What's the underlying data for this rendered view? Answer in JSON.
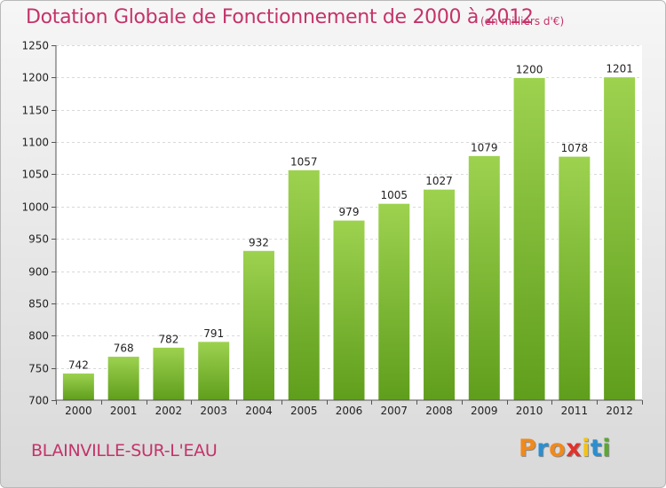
{
  "chart_data": {
    "type": "bar",
    "title": "Dotation Globale de Fonctionnement de 2000 à 2012",
    "subtitle": "(en milliers d'€)",
    "categories": [
      "2000",
      "2001",
      "2002",
      "2003",
      "2004",
      "2005",
      "2006",
      "2007",
      "2008",
      "2009",
      "2010",
      "2011",
      "2012"
    ],
    "values": [
      742,
      768,
      782,
      791,
      932,
      1057,
      979,
      1005,
      1027,
      1079,
      1200,
      1078,
      1201
    ],
    "ylim": [
      700,
      1250
    ],
    "yticks": [
      700,
      750,
      800,
      850,
      900,
      950,
      1000,
      1050,
      1100,
      1150,
      1200,
      1250
    ],
    "grid": true,
    "bar_color_top": "#9dd24f",
    "bar_color_bottom": "#5f9e1c"
  },
  "footer": {
    "commune": "BLAINVILLE-SUR-L'EAU",
    "logo_letters": [
      "P",
      "r",
      "o",
      "x",
      "i",
      "t",
      "i"
    ],
    "logo_colors": [
      "#f08a1c",
      "#2a8fd0",
      "#f08a1c",
      "#e2312b",
      "#f2c318",
      "#2a8fd0",
      "#5aa832"
    ]
  }
}
